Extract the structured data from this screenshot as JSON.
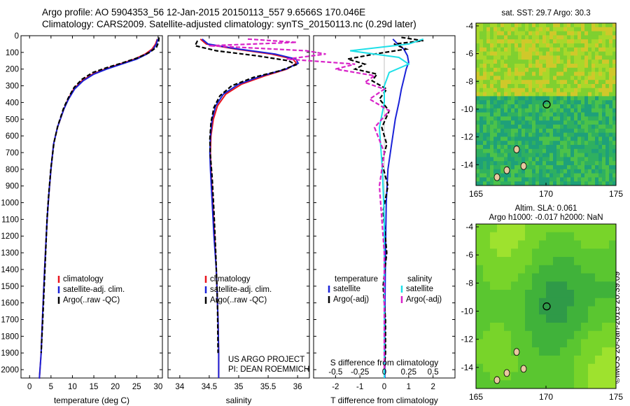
{
  "header": {
    "line1": "Argo profile: AO 5904353_56 12-Jan-2015 20150113_557 9.6566S 170.046E",
    "line2": "Climatology: CARS2009. Satellite-adjusted climatology: synTS_20150113.nc (0.29d later)"
  },
  "stamp": "©IMOS 20-Jan-2015 20:39:09",
  "colors": {
    "climatology": "#e8141e",
    "satellite": "#1a22d8",
    "argo": "#000000",
    "sat_s": "#1ee0e8",
    "argo_s": "#d823c8"
  },
  "chart_data": [
    {
      "type": "line",
      "name": "temperature profile",
      "xlabel": "temperature (deg C)",
      "ylabel": "",
      "xlim": [
        -2,
        31
      ],
      "ylim": [
        2050,
        0
      ],
      "xticks": [
        0,
        5,
        10,
        15,
        20,
        25,
        30
      ],
      "yticks": [
        0,
        100,
        200,
        300,
        400,
        500,
        600,
        700,
        800,
        900,
        1000,
        1100,
        1200,
        1300,
        1400,
        1500,
        1600,
        1700,
        1800,
        1900,
        2000
      ],
      "legend": [
        "climatology",
        "satellite-adj. clim.",
        "Argo(..raw -QC)"
      ],
      "legend_position": "lower-middle",
      "series": [
        {
          "name": "climatology",
          "color": "#e8141e",
          "style": "solid",
          "x": [
            29.8,
            29.4,
            28.6,
            27.0,
            24.5,
            21.0,
            17.6,
            14.7,
            12.2,
            10.3,
            9.0,
            8.0,
            6.5,
            5.6,
            5.0,
            4.5,
            4.1,
            3.5,
            3.0,
            2.7,
            2.3,
            2.2
          ],
          "y": [
            20,
            50,
            80,
            110,
            140,
            170,
            200,
            230,
            270,
            320,
            380,
            440,
            550,
            650,
            800,
            950,
            1100,
            1400,
            1700,
            1900,
            2050,
            2050
          ]
        },
        {
          "name": "satellite-adj. clim.",
          "color": "#1a22d8",
          "style": "solid",
          "x": [
            29.9,
            29.6,
            28.9,
            27.4,
            25.0,
            21.5,
            18.0,
            15.0,
            12.5,
            10.5,
            9.1,
            8.0,
            6.5,
            5.6,
            5.0,
            4.5,
            4.1,
            3.5,
            3.0,
            2.7,
            2.3,
            2.2
          ],
          "y": [
            20,
            50,
            80,
            110,
            140,
            170,
            200,
            230,
            270,
            320,
            380,
            440,
            550,
            650,
            800,
            950,
            1100,
            1400,
            1700,
            1900,
            2050,
            2050
          ]
        },
        {
          "name": "Argo(..raw -QC)",
          "color": "#000000",
          "style": "dashed",
          "x": [
            30.2,
            30.1,
            29.6,
            28.0,
            25.5,
            22.0,
            18.2,
            14.8,
            12.3,
            10.4,
            9.1,
            8.0,
            6.6,
            5.7,
            5.0,
            4.5,
            4.1,
            3.6,
            3.1,
            2.7
          ],
          "y": [
            10,
            40,
            70,
            100,
            130,
            160,
            190,
            220,
            260,
            310,
            370,
            430,
            540,
            640,
            790,
            940,
            1090,
            1390,
            1690,
            1900
          ]
        }
      ]
    },
    {
      "type": "line",
      "name": "salinity profile",
      "xlabel": "salinity",
      "ylabel": "",
      "xlim": [
        33.8,
        36.2
      ],
      "ylim": [
        2050,
        0
      ],
      "xticks": [
        34,
        34.5,
        35,
        35.5,
        36
      ],
      "legend": [
        "climatology",
        "satellite-adj. clim.",
        "Argo(..raw -QC)"
      ],
      "legend_position": "lower-middle",
      "annotation": [
        "US ARGO PROJECT",
        "PI: DEAN ROEMMICH"
      ],
      "series": [
        {
          "name": "climatology",
          "color": "#e8141e",
          "style": "solid",
          "x": [
            34.35,
            34.45,
            34.95,
            35.55,
            35.92,
            35.98,
            35.82,
            35.45,
            35.05,
            34.78,
            34.64,
            34.57,
            34.53,
            34.52,
            34.53,
            34.56,
            34.59,
            34.62,
            34.65,
            34.66,
            34.66
          ],
          "y": [
            20,
            50,
            80,
            110,
            140,
            165,
            200,
            240,
            290,
            350,
            420,
            500,
            600,
            700,
            800,
            1000,
            1200,
            1400,
            1700,
            1900,
            2050
          ]
        },
        {
          "name": "satellite-adj. clim.",
          "color": "#1a22d8",
          "style": "solid",
          "x": [
            34.38,
            34.48,
            35.0,
            35.62,
            35.97,
            36.01,
            35.8,
            35.4,
            35.0,
            34.74,
            34.61,
            34.55,
            34.52,
            34.51,
            34.52,
            34.55,
            34.58,
            34.62,
            34.65,
            34.66,
            34.66
          ],
          "y": [
            20,
            50,
            80,
            110,
            140,
            165,
            200,
            240,
            290,
            350,
            420,
            500,
            600,
            700,
            800,
            1000,
            1200,
            1400,
            1700,
            1900,
            2050
          ]
        },
        {
          "name": "Argo(..raw -QC)",
          "color": "#000000",
          "style": "dashed",
          "x": [
            34.3,
            34.26,
            34.62,
            35.3,
            35.85,
            35.97,
            35.7,
            35.25,
            34.88,
            34.68,
            34.58,
            34.53,
            34.51,
            34.52,
            34.55,
            34.58,
            34.61,
            34.64,
            34.65
          ],
          "y": [
            30,
            60,
            90,
            120,
            150,
            175,
            210,
            250,
            300,
            360,
            430,
            520,
            620,
            720,
            850,
            1050,
            1300,
            1600,
            1900
          ]
        }
      ]
    },
    {
      "type": "line",
      "name": "difference from climatology",
      "xlabel": "T difference from climatology",
      "x2label": "S difference from climatology",
      "xlim": [
        -2.9,
        2.9
      ],
      "ylim": [
        2050,
        0
      ],
      "xticks": [
        -2,
        -1,
        0,
        1,
        2
      ],
      "x2ticks": [
        -0.5,
        -0.25,
        0,
        0.25,
        0.5
      ],
      "legend_headers": [
        "temperature",
        "salinity"
      ],
      "legend": [
        "satellite",
        "Argo(-adj)",
        "satellite",
        "Argo(-adj)"
      ],
      "series": [
        {
          "name": "temperature satellite",
          "color": "#1a22d8",
          "style": "solid",
          "x": [
            0.35,
            0.55,
            0.8,
            0.95,
            1.0,
            0.9,
            0.8,
            0.7,
            0.6,
            0.45,
            0.3,
            0.15,
            0.08,
            0.05,
            0.03,
            0.02,
            0.02
          ],
          "y": [
            20,
            50,
            80,
            120,
            160,
            200,
            260,
            320,
            400,
            500,
            650,
            800,
            1000,
            1300,
            1600,
            1900,
            2050
          ]
        },
        {
          "name": "temperature Argo(-adj)",
          "color": "#000000",
          "style": "dashed",
          "x": [
            0.7,
            1.6,
            0.4,
            0.9,
            -0.4,
            -1.5,
            -0.8,
            -1.2,
            -0.3,
            -0.5,
            0.1,
            -0.2,
            0.2,
            -0.1,
            0.1,
            -0.1,
            0.15,
            -0.05,
            0.1,
            -0.05,
            0.05,
            0.05,
            0.0
          ],
          "y": [
            10,
            30,
            50,
            80,
            110,
            140,
            170,
            200,
            230,
            270,
            320,
            380,
            450,
            550,
            650,
            760,
            900,
            1050,
            1300,
            1500,
            1700,
            1900,
            2000
          ]
        },
        {
          "name": "salinity satellite",
          "color": "#1ee0e8",
          "style": "solid",
          "x": [
            0.4,
            0.25,
            -0.35,
            0.15,
            0.25,
            0.05,
            0.0,
            0.0,
            -0.05,
            -0.02,
            0.0,
            0.0,
            0.0
          ],
          "y": [
            20,
            50,
            90,
            130,
            170,
            220,
            300,
            400,
            550,
            800,
            1100,
            1500,
            2050
          ]
        },
        {
          "name": "salinity Argo(-adj)",
          "color": "#d823c8",
          "style": "dashed",
          "x": [
            -1.4,
            -0.9,
            -1.8,
            -0.8,
            -0.6,
            -1.0,
            -0.3,
            -0.5,
            -0.1,
            -0.2,
            0.0,
            -0.15,
            0.05,
            -0.1,
            0.0,
            -0.05,
            0.0,
            0.0
          ],
          "y": [
            20,
            40,
            60,
            90,
            110,
            140,
            170,
            200,
            240,
            280,
            320,
            380,
            450,
            550,
            700,
            900,
            1300,
            2000
          ]
        }
      ]
    },
    {
      "type": "heatmap",
      "name": "sat SST map",
      "title": "sat. SST: 29.7 Argo: 30.3",
      "xlim": [
        165,
        175
      ],
      "ylim": [
        -15.5,
        -3.8
      ],
      "xticks": [
        165,
        170,
        175
      ],
      "yticks": [
        -4,
        -6,
        -8,
        -10,
        -12,
        -14
      ],
      "marker": {
        "x": 170.05,
        "y": -9.66
      },
      "colors": [
        "#1ea07a",
        "#2fb060",
        "#4cc24a",
        "#7fd030",
        "#a8d82a",
        "#d0c82a",
        "#e8a030"
      ]
    },
    {
      "type": "heatmap",
      "name": "altimetry map",
      "title": "Altim. SLA: 0.061",
      "subtitle": "Argo h1000: -0.017 h2000: NaN",
      "xlim": [
        165,
        175
      ],
      "ylim": [
        -15.5,
        -3.8
      ],
      "xticks": [
        165,
        170,
        175
      ],
      "yticks": [
        -4,
        -6,
        -8,
        -10,
        -12,
        -14
      ],
      "marker": {
        "x": 170.05,
        "y": -9.66
      },
      "colors": [
        "#2f9a48",
        "#40b23a",
        "#5ac630",
        "#78d42a",
        "#9ee22e"
      ]
    }
  ]
}
